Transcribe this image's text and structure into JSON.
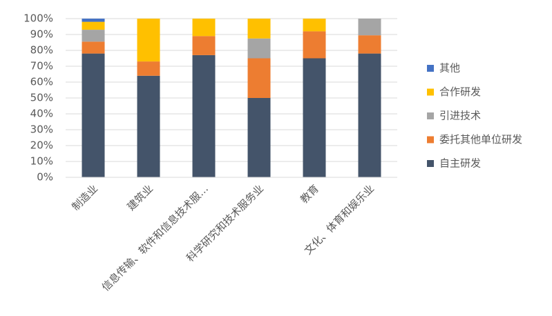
{
  "chart_data": {
    "type": "stacked_bar_percent",
    "categories": [
      "制造业",
      "建筑业",
      "信息传输、软件和信息技术服…",
      "科学研究和技术服务业",
      "教育",
      "文化、体育和娱乐业"
    ],
    "series": [
      {
        "name": "自主研发",
        "color": "#44546a",
        "values": [
          78,
          64,
          77,
          50,
          75,
          78
        ]
      },
      {
        "name": "委托其他单位研发",
        "color": "#ed7d31",
        "values": [
          7.5,
          9,
          12,
          25,
          17,
          11.5
        ]
      },
      {
        "name": "引进技术",
        "color": "#a5a5a5",
        "values": [
          7.5,
          0,
          0,
          12.5,
          0,
          10.5
        ]
      },
      {
        "name": "合作研发",
        "color": "#ffc000",
        "values": [
          5,
          27,
          11,
          12.5,
          8,
          0
        ]
      },
      {
        "name": "其他",
        "color": "#4472c4",
        "values": [
          2,
          0,
          0,
          0,
          0,
          0
        ]
      }
    ],
    "ylim": [
      0,
      100
    ],
    "yticks": [
      {
        "value": 0,
        "label": "0%"
      },
      {
        "value": 10,
        "label": "10%"
      },
      {
        "value": 20,
        "label": "20%"
      },
      {
        "value": 30,
        "label": "30%"
      },
      {
        "value": 40,
        "label": "40%"
      },
      {
        "value": 50,
        "label": "50%"
      },
      {
        "value": 60,
        "label": "60%"
      },
      {
        "value": 70,
        "label": "70%"
      },
      {
        "value": 80,
        "label": "80%"
      },
      {
        "value": 90,
        "label": "90%"
      },
      {
        "value": 100,
        "label": "100%"
      }
    ],
    "grid": true,
    "legend": "right"
  }
}
